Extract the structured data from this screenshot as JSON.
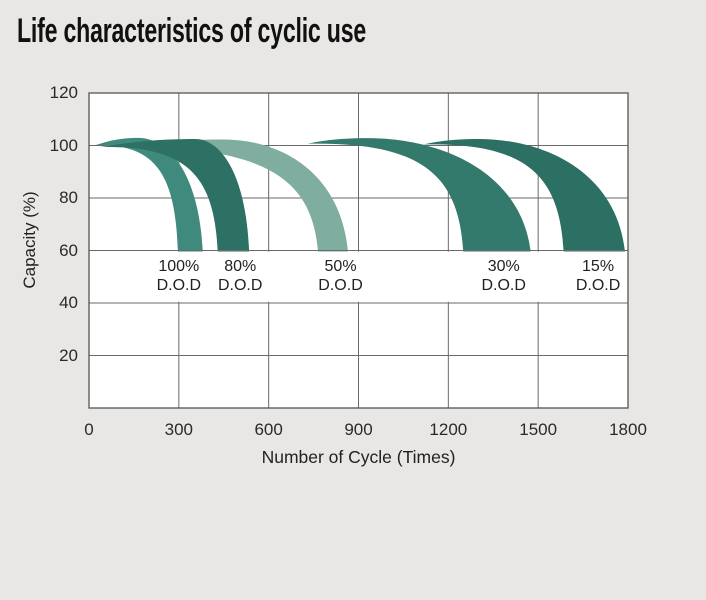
{
  "title": "Life characteristics of cyclic use",
  "chart_data": {
    "type": "area",
    "title": "Life characteristics of cyclic use",
    "xlabel": "Number of Cycle (Times)",
    "ylabel": "Capacity (%)",
    "xlim": [
      0,
      1800
    ],
    "ylim": [
      0,
      120
    ],
    "x_ticks": [
      0,
      300,
      600,
      900,
      1200,
      1500,
      1800
    ],
    "y_ticks": [
      120,
      100,
      80,
      60,
      40,
      20
    ],
    "grid": true,
    "grid_color": "#6a6a6a",
    "border_color": "#555555",
    "plot_background": "#ffffff",
    "label_band": {
      "capacity_top": 60,
      "capacity_bottom": 40
    },
    "series": [
      {
        "name": "100% D.O.D",
        "label": "100%",
        "sublabel": "D.O.D",
        "color": "#3F8A7C",
        "z": 1,
        "start_cycle": 20,
        "start_capacity": 100.1,
        "peak_cycle": 165,
        "peak_capacity": 102.9,
        "end_capacity": 60,
        "cycles_to_60_lower": 297,
        "cycles_to_60_upper": 380,
        "label_cycle": 300
      },
      {
        "name": "80% D.O.D",
        "label": "80%",
        "sublabel": "D.O.D",
        "color": "#2D7064",
        "z": 2,
        "start_cycle": 35,
        "start_capacity": 99.4,
        "peak_cycle": 355,
        "peak_capacity": 102.5,
        "end_capacity": 60,
        "cycles_to_60_lower": 430,
        "cycles_to_60_upper": 535,
        "label_cycle": 505
      },
      {
        "name": "50% D.O.D",
        "label": "50%",
        "sublabel": "D.O.D",
        "color": "#7FADA0",
        "z": 0,
        "start_cycle": 50,
        "start_capacity": 99.8,
        "peak_cycle": 450,
        "peak_capacity": 102.3,
        "end_capacity": 60,
        "cycles_to_60_lower": 765,
        "cycles_to_60_upper": 865,
        "label_cycle": 840
      },
      {
        "name": "30% D.O.D",
        "label": "30%",
        "sublabel": "D.O.D",
        "color": "#33796C",
        "z": 3,
        "start_cycle": 730,
        "start_capacity": 100.7,
        "peak_cycle": 930,
        "peak_capacity": 102.8,
        "end_capacity": 60,
        "cycles_to_60_lower": 1250,
        "cycles_to_60_upper": 1475,
        "label_cycle": 1385
      },
      {
        "name": "15% D.O.D",
        "label": "15%",
        "sublabel": "D.O.D",
        "color": "#2C7064",
        "z": 4,
        "start_cycle": 1115,
        "start_capacity": 100.4,
        "peak_cycle": 1300,
        "peak_capacity": 102.5,
        "end_capacity": 60,
        "cycles_to_60_lower": 1585,
        "cycles_to_60_upper": 1790,
        "label_cycle": 1700
      }
    ]
  }
}
